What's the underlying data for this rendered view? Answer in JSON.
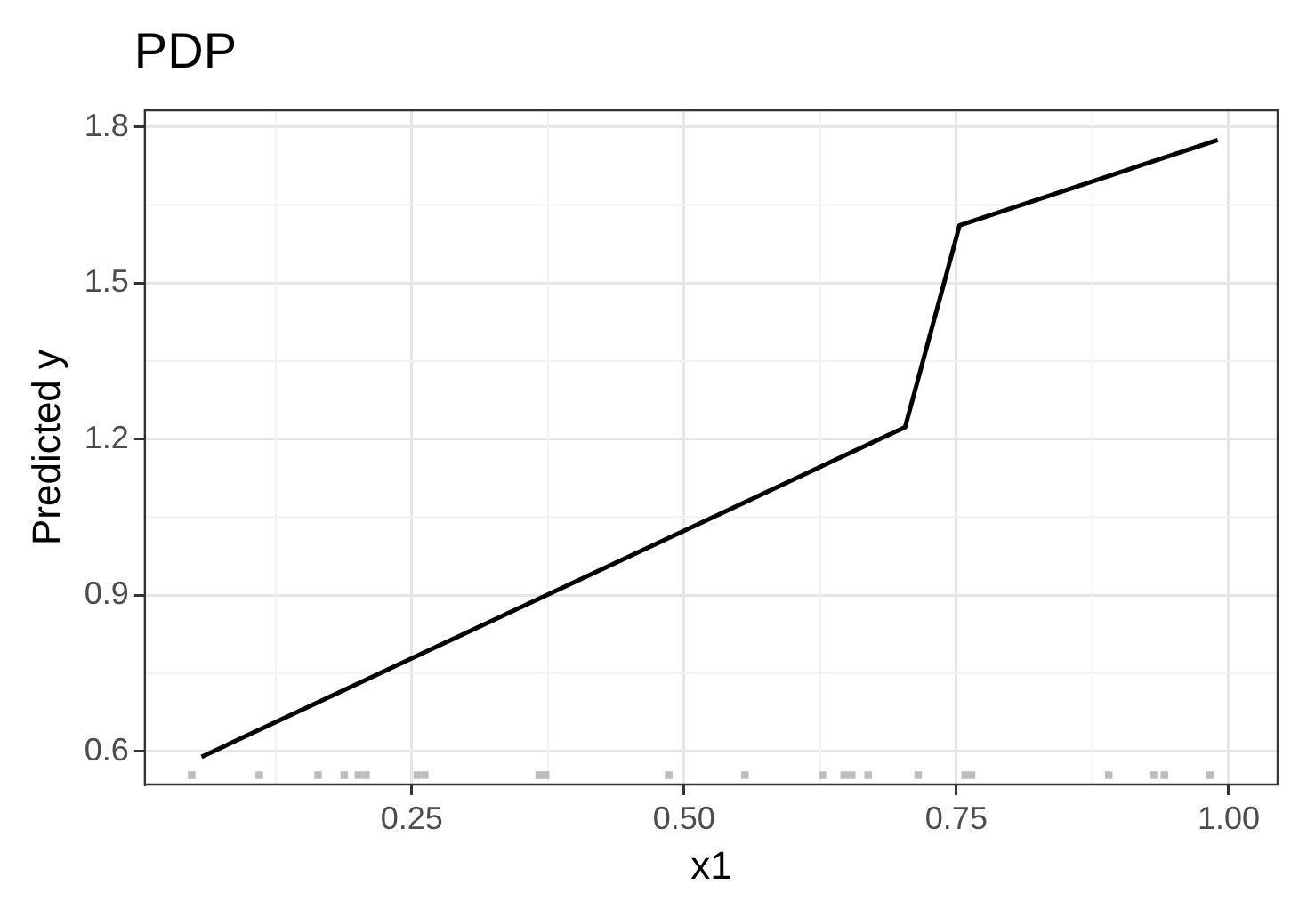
{
  "chart_data": {
    "type": "line",
    "title": "PDP",
    "xlabel": "x1",
    "ylabel": "Predicted y",
    "series": [
      {
        "color": "#000000",
        "x": [
          0.057,
          0.703,
          0.753,
          0.99
        ],
        "values": [
          0.589,
          1.223,
          1.611,
          1.775
        ]
      },
      {
        "type": "scatter",
        "color": "#bdbdbd",
        "x": [
          0.048,
          0.11,
          0.164,
          0.188,
          0.201,
          0.208,
          0.255,
          0.262,
          0.367,
          0.37,
          0.373,
          0.486,
          0.556,
          0.627,
          0.647,
          0.654,
          0.669,
          0.715,
          0.758,
          0.764,
          0.89,
          0.931,
          0.941,
          0.983
        ],
        "values": [
          0.554,
          0.554,
          0.554,
          0.554,
          0.554,
          0.554,
          0.554,
          0.554,
          0.554,
          0.554,
          0.554,
          0.554,
          0.554,
          0.554,
          0.554,
          0.554,
          0.554,
          0.554,
          0.554,
          0.554,
          0.554,
          0.554,
          0.554,
          0.554
        ]
      }
    ],
    "xlim": [
      0.005,
      1.045
    ],
    "xticks": [
      0.25,
      {
        "value": 0.5,
        "label": "0.50"
      },
      0.75,
      {
        "value": 1,
        "label": "1.00"
      }
    ],
    "ylim": [
      0.536,
      1.832
    ],
    "yticks": [
      0.6,
      0.9,
      1.2,
      1.5,
      1.8
    ],
    "grid": true,
    "legend": false
  }
}
